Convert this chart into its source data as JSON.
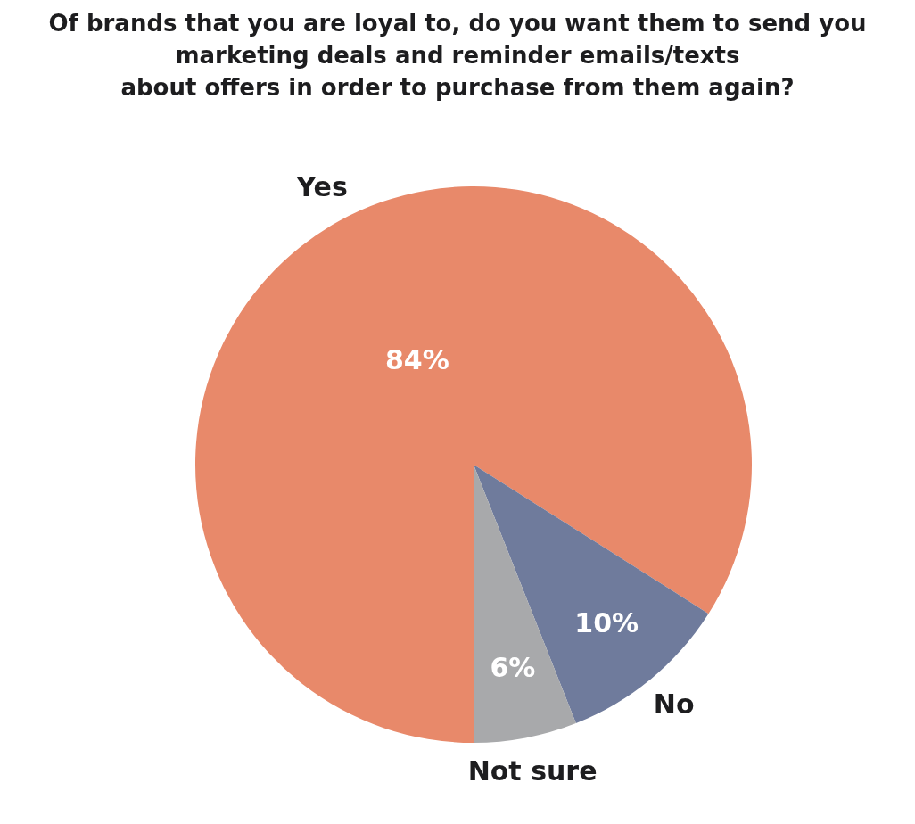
{
  "chart_data": {
    "type": "pie",
    "title": "Of brands that you are loyal to, do you want them to send you\nmarketing deals and reminder emails/texts\nabout offers in order to purchase from them again?",
    "categories": [
      "Yes",
      "No",
      "Not sure"
    ],
    "values": [
      84,
      10,
      6
    ],
    "colors": [
      "#e8896a",
      "#6f7b9c",
      "#a8a9ab"
    ],
    "value_labels": [
      "84%",
      "10%",
      "6%"
    ],
    "legend": false
  }
}
